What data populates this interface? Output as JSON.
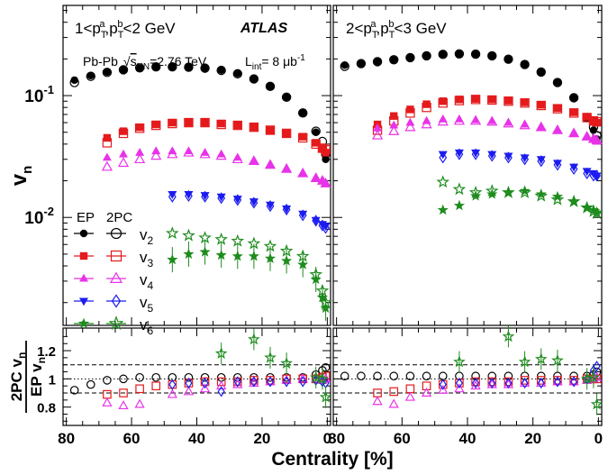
{
  "chart_data": {
    "type": "scatter",
    "experiment": "ATLAS",
    "system": "Pb-Pb",
    "energy_label": "s",
    "energy_sub": "NN",
    "energy_value": "=2.76 TeV",
    "lumi_label": "L",
    "lumi_sub": "int",
    "lumi_value": "= 8 μb",
    "lumi_sup": "-1",
    "xlabel": "Centrality [%]",
    "xlim": [
      81,
      -1
    ],
    "xticks": [
      "80",
      "60",
      "40",
      "20",
      "0"
    ],
    "top_ylabel": "v",
    "top_ylabel_sub": "n",
    "top_ylim": [
      0.0013,
      0.55
    ],
    "top_yscale": "log",
    "top_yticks": [
      {
        "value": 0.1,
        "base": "10",
        "exp": "-1"
      },
      {
        "value": 0.01,
        "base": "10",
        "exp": "-2"
      }
    ],
    "ratio_ylabel_num": "2PC v",
    "ratio_ylabel_num_sub": "n",
    "ratio_ylabel_den": "EP v",
    "ratio_ylabel_den_sub": "n",
    "ratio_ylim": [
      0.67,
      1.36
    ],
    "ratio_yticks": [
      "1.2",
      "1",
      "0.8"
    ],
    "ratio_ytick_values": [
      1.2,
      1.0,
      0.8
    ],
    "ratio_reference_lines": [
      0.9,
      1.0,
      1.1
    ],
    "legend": {
      "header_ep": "EP",
      "header_2pc": "2PC",
      "entries": [
        {
          "label": "v",
          "sub": "2"
        },
        {
          "label": "v",
          "sub": "3"
        },
        {
          "label": "v",
          "sub": "4"
        },
        {
          "label": "v",
          "sub": "5"
        },
        {
          "label": "v",
          "sub": "6"
        }
      ]
    },
    "harmonic_colors": {
      "v2": "#000000",
      "v3": "#e41a1c",
      "v4": "#e833e8",
      "v5": "#1c1cf0",
      "v6": "#1e8c1e"
    },
    "panels": [
      {
        "pt_text": "1<p",
        "pt_a": "a",
        "pt_b": "b",
        "pt_sub": "T",
        "pt_mid": ",p",
        "pt_tail": "<2 GeV",
        "series": [
          {
            "harmonic": "v2",
            "marker": "circle",
            "centrality": [
              77.5,
              72.5,
              67.5,
              62.5,
              57.5,
              52.5,
              47.5,
              42.5,
              37.5,
              32.5,
              27.5,
              22.5,
              17.5,
              12.5,
              7.5,
              3.5,
              1.5,
              0.5
            ],
            "ep": [
              0.134,
              0.146,
              0.156,
              0.163,
              0.168,
              0.172,
              0.172,
              0.171,
              0.168,
              0.162,
              0.152,
              0.137,
              0.119,
              0.097,
              0.072,
              0.05,
              0.036,
              0.03
            ],
            "pc": [
              0.128,
              0.144,
              0.155,
              0.163,
              0.169,
              0.172,
              0.172,
              0.171,
              0.168,
              0.161,
              0.151,
              0.137,
              0.119,
              0.097,
              0.072,
              0.051,
              0.042,
              0.033
            ],
            "ratio_centrality": [
              77.5,
              72.5,
              67.5,
              62.5,
              57.5,
              52.5,
              47.5,
              42.5,
              37.5,
              32.5,
              27.5,
              22.5,
              17.5,
              12.5,
              7.5,
              3.5,
              1.5,
              0.5
            ],
            "ratio": [
              0.92,
              0.96,
              0.99,
              1.0,
              1.01,
              1.01,
              1.01,
              1.01,
              1.01,
              1.01,
              1.01,
              1.01,
              1.01,
              1.01,
              1.01,
              1.03,
              1.06,
              1.08
            ]
          },
          {
            "harmonic": "v3",
            "marker": "square",
            "centrality": [
              67.5,
              62.5,
              57.5,
              52.5,
              47.5,
              42.5,
              37.5,
              32.5,
              27.5,
              22.5,
              17.5,
              12.5,
              7.5,
              3.5,
              1.5,
              0.5
            ],
            "ep": [
              0.045,
              0.051,
              0.055,
              0.058,
              0.06,
              0.06,
              0.06,
              0.059,
              0.057,
              0.055,
              0.052,
              0.049,
              0.046,
              0.041,
              0.037,
              0.034
            ],
            "pc": [
              0.041,
              0.049,
              0.054,
              0.057,
              0.059,
              0.06,
              0.06,
              0.058,
              0.057,
              0.055,
              0.052,
              0.049,
              0.045,
              0.04,
              0.037,
              0.036
            ],
            "ratio_centrality": [
              67.5,
              62.5,
              57.5,
              52.5,
              47.5,
              42.5,
              37.5,
              32.5,
              27.5,
              22.5,
              17.5,
              12.5,
              7.5,
              3.5,
              1.5,
              0.5
            ],
            "ratio": [
              0.89,
              0.9,
              0.93,
              0.95,
              0.96,
              0.97,
              0.98,
              0.98,
              0.98,
              0.99,
              0.99,
              1.0,
              1.0,
              1.0,
              1.01,
              1.02
            ]
          },
          {
            "harmonic": "v4",
            "marker": "triangle-up",
            "centrality": [
              67.5,
              62.5,
              57.5,
              52.5,
              47.5,
              42.5,
              37.5,
              32.5,
              27.5,
              22.5,
              17.5,
              12.5,
              7.5,
              3.5,
              1.5,
              0.5
            ],
            "ep": [
              0.031,
              0.033,
              0.034,
              0.035,
              0.035,
              0.035,
              0.034,
              0.033,
              0.031,
              0.029,
              0.027,
              0.025,
              0.023,
              0.021,
              0.02,
              0.019
            ],
            "pc": [
              0.026,
              0.028,
              0.03,
              0.032,
              0.033,
              0.034,
              0.033,
              0.032,
              0.03,
              0.029,
              0.027,
              0.025,
              0.023,
              0.021,
              0.02,
              0.019
            ],
            "ratio_centrality": [
              67.5,
              62.5,
              57.5,
              47.5,
              42.5,
              37.5,
              32.5,
              27.5,
              22.5,
              17.5,
              12.5,
              7.5,
              3.5,
              1.5,
              0.5
            ],
            "ratio": [
              0.83,
              0.81,
              0.82,
              0.89,
              0.91,
              0.93,
              0.95,
              0.96,
              0.97,
              0.98,
              0.99,
              1.0,
              1.0,
              0.99,
              1.0
            ]
          },
          {
            "harmonic": "v5",
            "marker": "triangle-down",
            "centrality": [
              47.5,
              42.5,
              37.5,
              32.5,
              27.5,
              22.5,
              17.5,
              12.5,
              7.5,
              3.5,
              1.5,
              0.5
            ],
            "ep": [
              0.0155,
              0.0155,
              0.0152,
              0.0148,
              0.0142,
              0.0135,
              0.0127,
              0.0118,
              0.0107,
              0.0095,
              0.0088,
              0.0085
            ],
            "pc": [
              0.0148,
              0.015,
              0.0148,
              0.0144,
              0.0139,
              0.0132,
              0.0124,
              0.0116,
              0.0104,
              0.0094,
              0.0086,
              0.0082
            ],
            "ratio_centrality": [
              47.5,
              42.5,
              37.5,
              32.5,
              27.5,
              22.5,
              17.5,
              12.5,
              7.5,
              3.5,
              1.5,
              0.5
            ],
            "ratio": [
              0.96,
              0.97,
              0.97,
              0.91,
              0.98,
              0.98,
              0.98,
              0.98,
              0.98,
              0.99,
              0.98,
              0.97
            ]
          },
          {
            "harmonic": "v6",
            "marker": "star",
            "centrality": [
              47.5,
              42.5,
              37.5,
              32.5,
              27.5,
              22.5,
              17.5,
              12.5,
              7.5,
              3.5,
              1.5,
              0.5
            ],
            "ep": [
              0.0045,
              0.005,
              0.0052,
              0.0049,
              0.0048,
              0.0048,
              0.0046,
              0.0044,
              0.0041,
              0.0031,
              0.0022,
              0.0018
            ],
            "pc": [
              0.0074,
              0.0071,
              0.0068,
              0.0066,
              0.0064,
              0.0061,
              0.0058,
              0.0053,
              0.0048,
              0.0034,
              0.0025,
              0.002
            ],
            "ratio_centrality": [
              32.5,
              22.5,
              17.5,
              12.5,
              3.5,
              1.5,
              0.5
            ],
            "ratio": [
              1.18,
              1.28,
              1.15,
              1.11,
              1.01,
              1.0,
              0.87
            ]
          }
        ]
      },
      {
        "pt_text": "2<p",
        "pt_a": "a",
        "pt_b": "b",
        "pt_sub": "T",
        "pt_mid": ",p",
        "pt_tail": "<3 GeV",
        "series": [
          {
            "harmonic": "v2",
            "marker": "circle",
            "centrality": [
              77.5,
              72.5,
              67.5,
              62.5,
              57.5,
              52.5,
              47.5,
              42.5,
              37.5,
              32.5,
              27.5,
              22.5,
              17.5,
              12.5,
              7.5,
              3.5,
              1.5,
              0.5
            ],
            "ep": [
              0.178,
              0.183,
              0.19,
              0.197,
              0.205,
              0.212,
              0.218,
              0.22,
              0.219,
              0.212,
              0.199,
              0.18,
              0.156,
              0.128,
              0.096,
              0.065,
              0.052,
              0.044
            ],
            "pc": [
              0.174,
              0.183,
              0.19,
              0.197,
              0.205,
              0.212,
              0.218,
              0.22,
              0.219,
              0.212,
              0.199,
              0.18,
              0.156,
              0.128,
              0.096,
              0.066,
              0.055,
              0.047
            ],
            "ratio_centrality": [
              77.5,
              72.5,
              67.5,
              62.5,
              57.5,
              52.5,
              47.5,
              42.5,
              37.5,
              32.5,
              27.5,
              22.5,
              17.5,
              12.5,
              7.5,
              3.5,
              1.5,
              0.5
            ],
            "ratio": [
              1.02,
              1.02,
              1.02,
              1.02,
              1.02,
              1.02,
              1.02,
              1.02,
              1.02,
              1.02,
              1.02,
              1.02,
              1.02,
              1.02,
              1.02,
              1.02,
              1.03,
              1.05
            ]
          },
          {
            "harmonic": "v3",
            "marker": "square",
            "centrality": [
              67.5,
              62.5,
              57.5,
              52.5,
              47.5,
              42.5,
              37.5,
              32.5,
              27.5,
              22.5,
              17.5,
              12.5,
              7.5,
              3.5,
              1.5,
              0.5
            ],
            "ep": [
              0.058,
              0.068,
              0.077,
              0.085,
              0.09,
              0.093,
              0.094,
              0.093,
              0.091,
              0.088,
              0.084,
              0.079,
              0.073,
              0.067,
              0.062,
              0.06
            ],
            "pc": [
              0.052,
              0.062,
              0.072,
              0.08,
              0.087,
              0.091,
              0.093,
              0.092,
              0.09,
              0.087,
              0.083,
              0.078,
              0.072,
              0.066,
              0.062,
              0.061
            ],
            "ratio_centrality": [
              67.5,
              62.5,
              57.5,
              52.5,
              47.5,
              42.5,
              37.5,
              32.5,
              27.5,
              22.5,
              17.5,
              12.5,
              7.5,
              3.5,
              1.5,
              0.5
            ],
            "ratio": [
              0.9,
              0.91,
              0.93,
              0.95,
              0.96,
              0.97,
              0.98,
              0.98,
              0.98,
              0.99,
              0.99,
              0.99,
              0.99,
              1.0,
              1.0,
              1.0
            ]
          },
          {
            "harmonic": "v4",
            "marker": "triangle-up",
            "centrality": [
              67.5,
              62.5,
              57.5,
              52.5,
              47.5,
              42.5,
              37.5,
              32.5,
              27.5,
              22.5,
              17.5,
              12.5,
              7.5,
              3.5,
              1.5,
              0.5
            ],
            "ep": [
              0.054,
              0.057,
              0.06,
              0.062,
              0.064,
              0.064,
              0.063,
              0.062,
              0.06,
              0.058,
              0.055,
              0.052,
              0.049,
              0.046,
              0.044,
              0.042
            ],
            "pc": [
              0.047,
              0.051,
              0.055,
              0.058,
              0.061,
              0.062,
              0.062,
              0.061,
              0.059,
              0.057,
              0.055,
              0.052,
              0.049,
              0.046,
              0.044,
              0.043
            ],
            "ratio_centrality": [
              67.5,
              62.5,
              57.5,
              52.5,
              47.5,
              42.5,
              37.5,
              32.5,
              27.5,
              22.5,
              17.5,
              12.5,
              7.5,
              3.5,
              1.5,
              0.5
            ],
            "ratio": [
              0.84,
              0.82,
              0.87,
              0.9,
              0.92,
              0.93,
              0.95,
              0.96,
              0.96,
              0.97,
              0.97,
              0.98,
              0.98,
              0.99,
              1.0,
              1.01
            ]
          },
          {
            "harmonic": "v5",
            "marker": "triangle-down",
            "centrality": [
              47.5,
              42.5,
              37.5,
              32.5,
              27.5,
              22.5,
              17.5,
              12.5,
              7.5,
              3.5,
              1.5,
              0.5
            ],
            "ep": [
              0.033,
              0.034,
              0.034,
              0.033,
              0.032,
              0.031,
              0.03,
              0.028,
              0.026,
              0.024,
              0.023,
              0.022
            ],
            "pc": [
              0.031,
              0.033,
              0.033,
              0.032,
              0.031,
              0.03,
              0.029,
              0.027,
              0.025,
              0.023,
              0.022,
              0.022
            ],
            "ratio_centrality": [
              47.5,
              42.5,
              37.5,
              32.5,
              27.5,
              22.5,
              17.5,
              12.5,
              7.5,
              3.5,
              1.5,
              0.5
            ],
            "ratio": [
              0.96,
              0.97,
              0.97,
              0.97,
              0.97,
              0.97,
              0.97,
              0.98,
              0.98,
              1.0,
              1.06,
              1.09
            ]
          },
          {
            "harmonic": "v6",
            "marker": "star",
            "centrality": [
              47.5,
              42.5,
              37.5,
              32.5,
              27.5,
              22.5,
              17.5,
              12.5,
              7.5,
              3.5,
              1.5,
              0.5
            ],
            "ep": [
              0.0115,
              0.0125,
              0.015,
              0.0155,
              0.016,
              0.0165,
              0.0155,
              0.0148,
              0.0135,
              0.012,
              0.0115,
              0.011
            ],
            "pc": [
              0.0195,
              0.017,
              0.016,
              0.0165,
              0.016,
              0.016,
              0.015,
              0.014,
              0.0135,
              0.012,
              0.0112,
              0.0108
            ],
            "ratio_centrality": [
              42.5,
              27.5,
              22.5,
              17.5,
              12.5,
              3.5,
              1.5,
              0.5
            ],
            "ratio": [
              1.12,
              1.3,
              1.12,
              1.14,
              1.13,
              1.0,
              1.01,
              0.82
            ]
          }
        ]
      }
    ]
  }
}
